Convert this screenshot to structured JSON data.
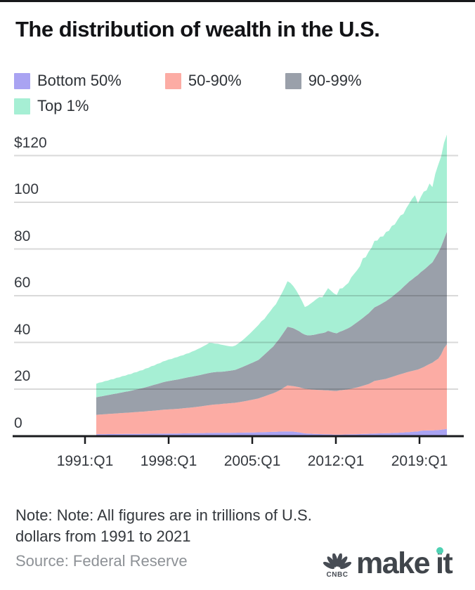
{
  "page": {
    "top_bar_color": "#17181a",
    "background": "#ffffff"
  },
  "header": {
    "title": "The distribution of wealth in the U.S."
  },
  "legend": {
    "items": [
      {
        "label": "Bottom 50%",
        "color": "#a9a3f2"
      },
      {
        "label": "50-90%",
        "color": "#fcaca4"
      },
      {
        "label": "90-99%",
        "color": "#9aa0aa"
      },
      {
        "label": "Top 1%",
        "color": "#a6efd4"
      }
    ]
  },
  "chart_data": {
    "type": "area",
    "stacked": true,
    "title": "The distribution of wealth in the U.S.",
    "unit": "trillions of U.S. dollars",
    "x_frequency": "quarterly",
    "x_start": "1991:Q1",
    "x_end": "2021:Q2",
    "x_tick_labels": [
      "1991:Q1",
      "1998:Q1",
      "2005:Q1",
      "2012:Q1",
      "2019:Q1"
    ],
    "y_tick_labels": [
      "$120",
      "100",
      "80",
      "60",
      "40",
      "20",
      "0"
    ],
    "y_tick_values": [
      120,
      100,
      80,
      60,
      40,
      20,
      0
    ],
    "ylim": [
      0,
      130
    ],
    "grid": "horizontal",
    "legend_position": "top",
    "axis_color": "#1a1b1e",
    "gridline_color": "rgba(0,0,0,0.15)",
    "series": [
      {
        "name": "Bottom 50%",
        "color": "#a9a3f2",
        "values": [
          0.7,
          0.71,
          0.72,
          0.73,
          0.74,
          0.75,
          0.76,
          0.77,
          0.78,
          0.79,
          0.8,
          0.81,
          0.82,
          0.83,
          0.84,
          0.85,
          0.86,
          0.87,
          0.88,
          0.89,
          0.9,
          0.91,
          0.92,
          0.93,
          0.94,
          0.95,
          0.97,
          0.98,
          1.0,
          1.02,
          1.04,
          1.06,
          1.08,
          1.1,
          1.12,
          1.14,
          1.16,
          1.18,
          1.2,
          1.22,
          1.24,
          1.25,
          1.26,
          1.27,
          1.28,
          1.29,
          1.3,
          1.31,
          1.32,
          1.34,
          1.36,
          1.38,
          1.4,
          1.42,
          1.45,
          1.47,
          1.5,
          1.54,
          1.58,
          1.62,
          1.66,
          1.7,
          1.75,
          1.8,
          1.84,
          1.87,
          1.9,
          1.85,
          1.8,
          1.65,
          1.5,
          1.25,
          1.05,
          1.0,
          0.92,
          0.85,
          0.8,
          0.75,
          0.72,
          0.7,
          0.65,
          0.6,
          0.55,
          0.52,
          0.55,
          0.58,
          0.6,
          0.63,
          0.66,
          0.69,
          0.72,
          0.76,
          0.8,
          0.84,
          0.88,
          0.94,
          1.0,
          1.02,
          1.05,
          1.08,
          1.1,
          1.15,
          1.2,
          1.25,
          1.3,
          1.37,
          1.45,
          1.52,
          1.6,
          1.7,
          1.8,
          1.9,
          2.2,
          2.25,
          2.3,
          2.35,
          2.3,
          2.4,
          2.5,
          2.65,
          2.8,
          3.0
        ]
      },
      {
        "name": "50-90%",
        "color": "#fcaca4",
        "values": [
          8.3,
          8.38,
          8.45,
          8.52,
          8.6,
          8.68,
          8.75,
          8.82,
          8.9,
          8.97,
          9.05,
          9.12,
          9.2,
          9.28,
          9.35,
          9.43,
          9.5,
          9.6,
          9.7,
          9.8,
          9.9,
          10.0,
          10.1,
          10.22,
          10.3,
          10.36,
          10.42,
          10.48,
          10.55,
          10.65,
          10.75,
          10.85,
          10.95,
          11.05,
          11.18,
          11.3,
          11.45,
          11.6,
          11.75,
          11.9,
          12.05,
          12.15,
          12.25,
          12.35,
          12.45,
          12.55,
          12.65,
          12.75,
          12.85,
          13.0,
          13.2,
          13.4,
          13.6,
          13.85,
          14.05,
          14.3,
          14.5,
          14.9,
          15.3,
          15.7,
          16.1,
          16.5,
          17.0,
          17.5,
          18.2,
          19.0,
          19.7,
          19.6,
          19.5,
          19.4,
          19.3,
          19.2,
          19.1,
          19.0,
          18.95,
          18.9,
          18.9,
          18.85,
          18.85,
          18.8,
          18.8,
          18.75,
          18.7,
          18.7,
          18.9,
          19.0,
          19.15,
          19.3,
          19.5,
          19.75,
          20.0,
          20.3,
          20.6,
          20.95,
          21.3,
          21.9,
          22.5,
          22.7,
          22.9,
          23.1,
          23.3,
          23.65,
          24.0,
          24.35,
          24.7,
          25.0,
          25.3,
          25.6,
          25.9,
          26.1,
          26.3,
          26.5,
          26.7,
          27.2,
          27.8,
          28.4,
          29.0,
          29.8,
          30.5,
          32.2,
          34.7,
          36.2
        ]
      },
      {
        "name": "90-99%",
        "color": "#9aa0aa",
        "values": [
          7.5,
          7.65,
          7.8,
          7.95,
          8.1,
          8.25,
          8.4,
          8.55,
          8.7,
          8.85,
          9.0,
          9.15,
          9.3,
          9.5,
          9.7,
          9.9,
          10.1,
          10.3,
          10.55,
          10.8,
          11.05,
          11.3,
          11.55,
          11.8,
          12.0,
          12.15,
          12.3,
          12.45,
          12.55,
          12.7,
          12.85,
          13.0,
          13.1,
          13.2,
          13.3,
          13.4,
          13.5,
          13.6,
          13.7,
          13.8,
          13.85,
          13.9,
          13.9,
          13.85,
          13.8,
          13.85,
          13.9,
          14.0,
          14.1,
          14.4,
          14.7,
          15.0,
          15.3,
          15.6,
          15.9,
          16.2,
          16.5,
          17.2,
          17.9,
          18.6,
          19.3,
          20.0,
          21.0,
          22.0,
          23.0,
          24.0,
          25.1,
          25.0,
          24.8,
          24.4,
          24.0,
          23.5,
          23.2,
          23.0,
          23.2,
          23.5,
          23.8,
          24.2,
          24.4,
          24.8,
          25.5,
          25.2,
          24.9,
          24.7,
          25.1,
          25.4,
          25.8,
          26.2,
          26.7,
          27.3,
          27.9,
          28.5,
          29.1,
          29.7,
          30.3,
          30.9,
          31.5,
          31.9,
          32.3,
          32.8,
          33.3,
          33.8,
          34.3,
          34.9,
          35.5,
          36.2,
          37.0,
          37.8,
          38.6,
          39.2,
          39.9,
          40.5,
          41.2,
          41.6,
          42.0,
          42.5,
          43.0,
          44.2,
          45.5,
          46.2,
          46.8,
          48.2
        ]
      },
      {
        "name": "Top 1%",
        "color": "#a6efd4",
        "values": [
          5.8,
          6.05,
          6.0,
          6.25,
          6.2,
          6.45,
          6.4,
          6.7,
          6.65,
          6.95,
          6.9,
          7.2,
          7.15,
          7.45,
          7.4,
          7.7,
          7.65,
          8.0,
          7.95,
          8.3,
          8.25,
          8.6,
          8.55,
          8.9,
          8.95,
          9.25,
          9.2,
          9.5,
          9.6,
          9.9,
          9.85,
          10.2,
          10.3,
          10.7,
          10.9,
          11.3,
          11.6,
          12.0,
          12.4,
          12.9,
          12.6,
          12.2,
          12.0,
          11.6,
          11.3,
          10.9,
          10.5,
          10.2,
          10.4,
          10.8,
          11.2,
          11.7,
          12.3,
          12.9,
          13.6,
          14.3,
          15.0,
          15.4,
          15.2,
          15.8,
          16.2,
          16.8,
          16.6,
          17.4,
          17.9,
          18.6,
          19.5,
          19.0,
          18.0,
          16.8,
          15.3,
          13.8,
          11.8,
          12.7,
          13.6,
          14.3,
          15.1,
          15.6,
          15.3,
          17.0,
          18.3,
          17.6,
          16.8,
          16.4,
          18.5,
          18.2,
          18.9,
          19.3,
          21.0,
          21.6,
          22.3,
          23.1,
          25.5,
          25.0,
          26.4,
          26.8,
          28.5,
          28.0,
          29.0,
          28.4,
          29.6,
          29.2,
          30.4,
          30.0,
          31.0,
          31.8,
          31.2,
          32.6,
          33.4,
          34.5,
          35.0,
          30.6,
          32.2,
          33.5,
          33.0,
          34.8,
          32.2,
          35.8,
          37.5,
          38.5,
          41.2,
          41.6
        ]
      }
    ]
  },
  "footer": {
    "note": "Note: Note: All figures are in trillions of U.S. dollars from 1991 to 2021",
    "source": "Source: Federal Reserve",
    "logo": {
      "cnbc": "CNBC",
      "make": "make",
      "it": "it",
      "dot_color": "#4fd1b3",
      "color": "#474c54"
    }
  }
}
